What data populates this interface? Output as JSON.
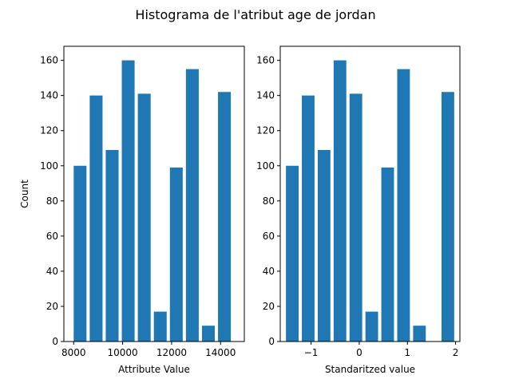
{
  "figure": {
    "title": "Histograma de l'atribut age de jordan"
  },
  "chart_data": [
    {
      "type": "bar",
      "title": "",
      "xlabel": "Attribute Value",
      "ylabel": "Count",
      "bar_color": "#1f77b4",
      "xlim": [
        7600,
        14970
      ],
      "ylim": [
        0,
        168
      ],
      "x_ticks": [
        8000,
        10000,
        12000,
        14000
      ],
      "y_ticks": [
        0,
        20,
        40,
        60,
        80,
        100,
        120,
        140,
        160
      ],
      "bin_width": 524,
      "x": [
        8262,
        8917,
        9572,
        10227,
        10882,
        11537,
        12192,
        12847,
        13502,
        14157
      ],
      "values": [
        100,
        140,
        109,
        160,
        141,
        17,
        99,
        155,
        9,
        142
      ]
    },
    {
      "type": "bar",
      "title": "",
      "xlabel": "Standaritzed value",
      "ylabel": "",
      "bar_color": "#1f77b4",
      "xlim": [
        -1.64,
        2.09
      ],
      "ylim": [
        0,
        168
      ],
      "x_ticks": [
        -1,
        0,
        1,
        2
      ],
      "y_ticks": [
        0,
        20,
        40,
        60,
        80,
        100,
        120,
        140,
        160
      ],
      "bin_width": 0.263,
      "x": [
        -1.39,
        -1.06,
        -0.73,
        -0.4,
        -0.07,
        0.26,
        0.59,
        0.92,
        1.25,
        1.84
      ],
      "values": [
        100,
        140,
        109,
        160,
        141,
        17,
        99,
        155,
        9,
        142
      ]
    }
  ]
}
